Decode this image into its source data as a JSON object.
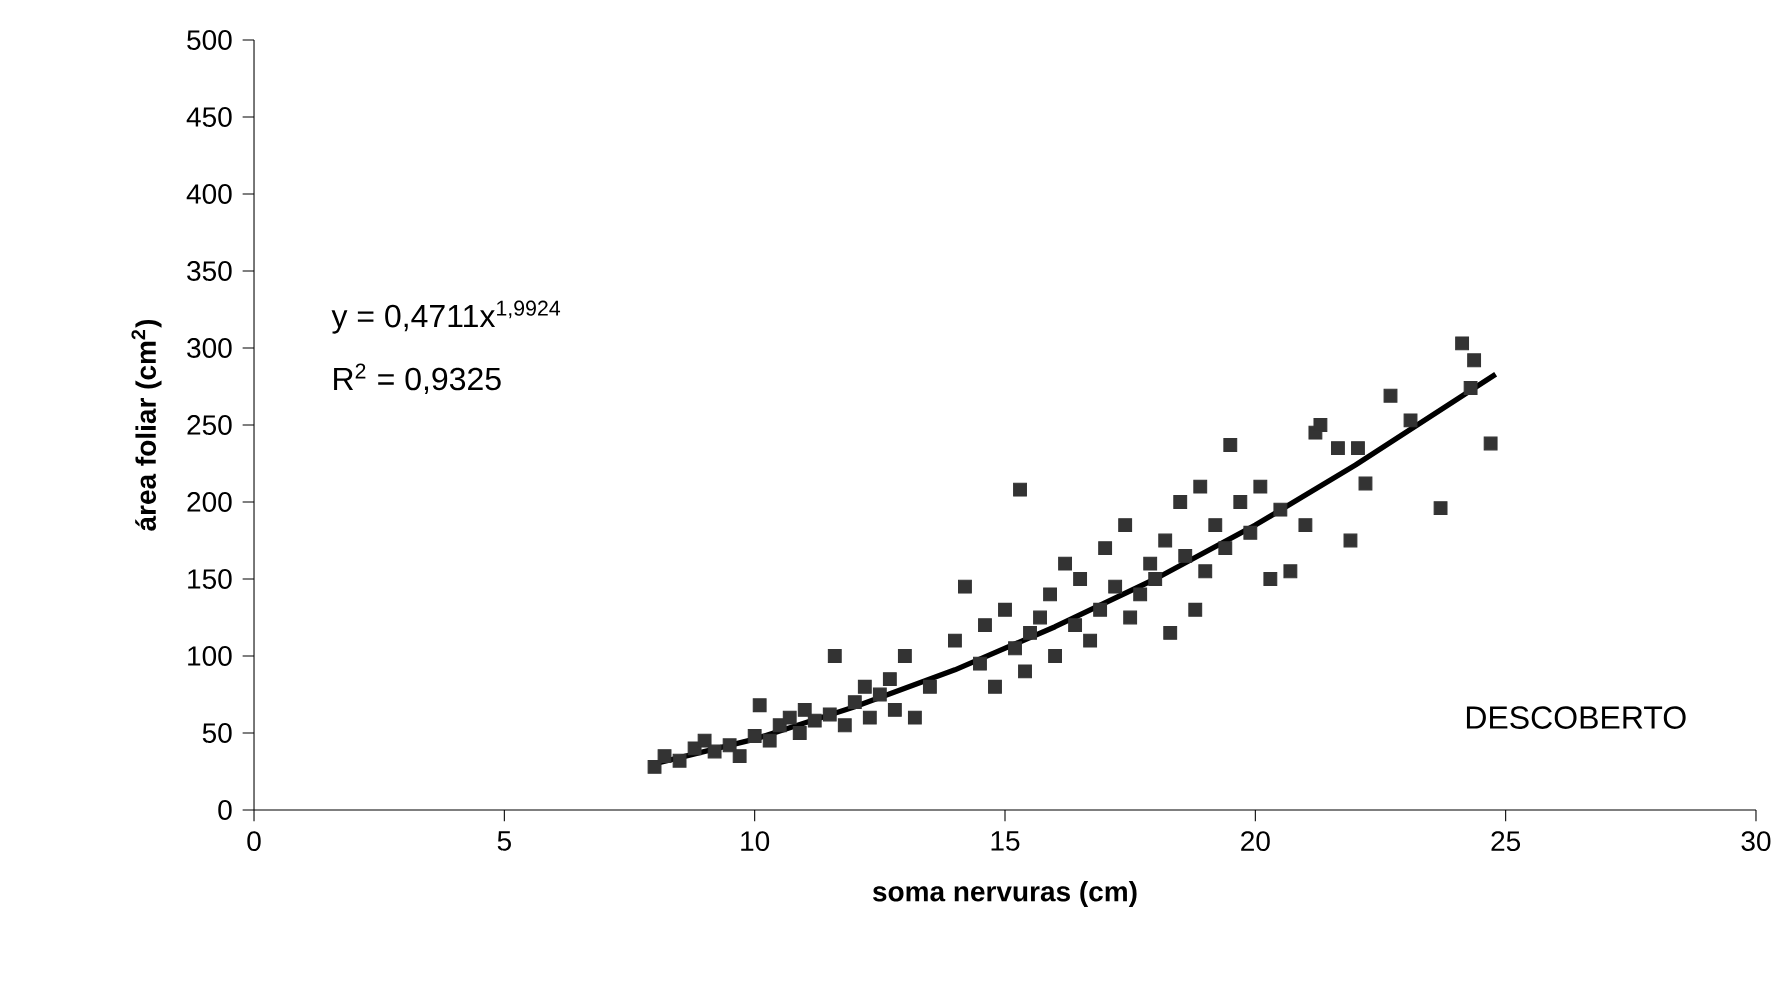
{
  "chart_data": {
    "type": "scatter",
    "xlabel": "soma nervuras (cm)",
    "ylabel": "área foliar (cm$^{2}$)",
    "xlim": [
      0,
      30
    ],
    "xticks": [
      0,
      5,
      10,
      15,
      20,
      25,
      30
    ],
    "ylim": [
      0,
      500
    ],
    "yticks": [
      0,
      50,
      100,
      150,
      200,
      250,
      300,
      350,
      400,
      450,
      500
    ],
    "marker": "square",
    "annotations": [
      "y = 0,4711x$^{1,9924}$",
      "R$^{2}$ = 0,9325",
      "DESCOBERTO"
    ],
    "series": [
      {
        "color": "#333333",
        "x": [
          8,
          8.2,
          8.5,
          8.8,
          9,
          9.2,
          9.5,
          9.7,
          10,
          10.1,
          10.3,
          10.5,
          10.7,
          10.9,
          11,
          11.2,
          11.5,
          11.6,
          11.8,
          12,
          12.2,
          12.3,
          12.5,
          12.7,
          12.8,
          13,
          13.2,
          13.5,
          14,
          14.2,
          14.5,
          14.6,
          14.8,
          15,
          15.2,
          15.3,
          15.4,
          15.5,
          15.7,
          15.9,
          16,
          16.2,
          16.4,
          16.5,
          16.7,
          16.9,
          17,
          17.2,
          17.4,
          17.5,
          17.7,
          17.9,
          18,
          18.2,
          18.3,
          18.5,
          18.6,
          18.8,
          18.9,
          19,
          19.2,
          19.4,
          19.5,
          19.7,
          19.9,
          20.1,
          20.3,
          20.5,
          20.7,
          21,
          21.2,
          21.3,
          21.65,
          21.9,
          22.05,
          22.2,
          22.7,
          23.1,
          23.7,
          24.13,
          24.3,
          24.37,
          24.7
        ],
        "values": [
          28,
          35,
          32,
          40,
          45,
          38,
          42,
          35,
          48,
          68,
          45,
          55,
          60,
          50,
          65,
          58,
          62,
          100,
          55,
          70,
          80,
          60,
          75,
          85,
          65,
          100,
          60,
          80,
          110,
          145,
          95,
          120,
          80,
          130,
          105,
          208,
          90,
          115,
          125,
          140,
          100,
          160,
          120,
          150,
          110,
          130,
          170,
          145,
          185,
          125,
          140,
          160,
          150,
          175,
          115,
          200,
          165,
          130,
          210,
          155,
          185,
          170,
          237,
          200,
          180,
          210,
          150,
          195,
          155,
          185,
          245,
          250,
          235,
          175,
          235,
          212,
          269,
          253,
          196,
          303,
          274,
          292,
          238
        ]
      },
      {
        "type": "line",
        "color": "#000000",
        "marker": "none",
        "x": [
          8,
          10,
          12,
          14,
          16,
          18,
          20,
          22,
          24.8
        ],
        "values": [
          30,
          46,
          67,
          91,
          119,
          150,
          185,
          224,
          283
        ]
      }
    ]
  }
}
